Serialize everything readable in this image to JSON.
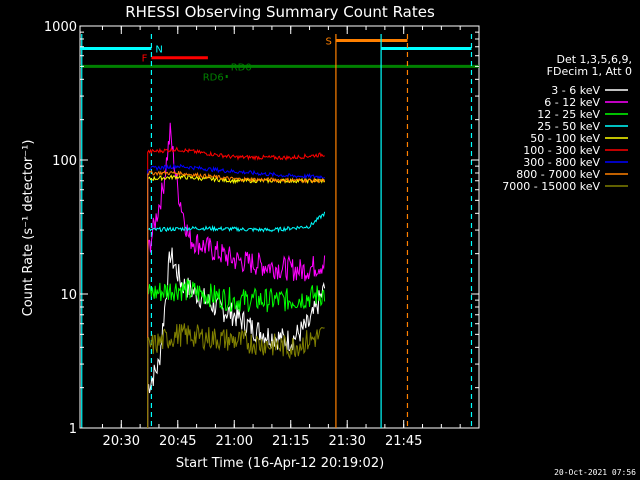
{
  "chart_data": {
    "type": "line",
    "title": "RHESSI Observing Summary Count Rates",
    "xlabel": "Start Time (16-Apr-12 20:19:02)",
    "ylabel": "Count Rate (s⁻¹ detector⁻¹)",
    "y_scale": "log",
    "ylim": [
      1,
      1000
    ],
    "y_ticks": [
      {
        "value": 1,
        "label": "1"
      },
      {
        "value": 10,
        "label": "10"
      },
      {
        "value": 100,
        "label": "100"
      },
      {
        "value": 1000,
        "label": "1000"
      }
    ],
    "x_ticks": [
      "20:30",
      "20:45",
      "21:00",
      "21:15",
      "21:30",
      "21:45"
    ],
    "xlim": [
      "20:19:02",
      "22:05:00"
    ],
    "footer_date": "20-Oct-2021 07:56",
    "legend_header": [
      "Det 1,3,5,6,9,",
      "FDecim 1, Att 0"
    ],
    "legend_position": "right",
    "series": [
      {
        "name": "3 - 6 keV",
        "color": "#ffffff",
        "data_start": "20:37",
        "data_end": "21:24",
        "points": [
          [
            "20:37",
            2
          ],
          [
            "20:40",
            3
          ],
          [
            "20:43",
            20
          ],
          [
            "20:46",
            12
          ],
          [
            "20:50",
            10
          ],
          [
            "20:55",
            8
          ],
          [
            "21:00",
            7
          ],
          [
            "21:05",
            5.5
          ],
          [
            "21:10",
            4.8
          ],
          [
            "21:15",
            4.5
          ],
          [
            "21:20",
            6
          ],
          [
            "21:24",
            11
          ]
        ]
      },
      {
        "name": "6 - 12 keV",
        "color": "#ff00ff",
        "data_start": "20:37",
        "data_end": "21:24",
        "points": [
          [
            "20:37",
            20
          ],
          [
            "20:41",
            60
          ],
          [
            "20:43",
            160
          ],
          [
            "20:45",
            60
          ],
          [
            "20:48",
            26
          ],
          [
            "20:53",
            22
          ],
          [
            "21:00",
            18
          ],
          [
            "21:10",
            16
          ],
          [
            "21:18",
            15
          ],
          [
            "21:24",
            17
          ]
        ]
      },
      {
        "name": "12 - 25 keV",
        "color": "#00ff00",
        "data_start": "20:37",
        "data_end": "21:24",
        "points": [
          [
            "20:37",
            10
          ],
          [
            "20:45",
            11
          ],
          [
            "21:00",
            9
          ],
          [
            "21:15",
            9
          ],
          [
            "21:24",
            10
          ]
        ]
      },
      {
        "name": "25 - 50 keV",
        "color": "#00ffff",
        "data_start": "20:37",
        "data_end": "21:24",
        "points": [
          [
            "20:37",
            30
          ],
          [
            "20:50",
            31
          ],
          [
            "21:10",
            30
          ],
          [
            "21:20",
            32
          ],
          [
            "21:24",
            40
          ]
        ]
      },
      {
        "name": "50 - 100 keV",
        "color": "#ffff00",
        "data_start": "20:37",
        "data_end": "21:24",
        "points": [
          [
            "20:37",
            72
          ],
          [
            "20:45",
            75
          ],
          [
            "21:00",
            70
          ],
          [
            "21:24",
            70
          ]
        ]
      },
      {
        "name": "100 - 300 keV",
        "color": "#ff0000",
        "data_start": "20:37",
        "data_end": "21:24",
        "points": [
          [
            "20:37",
            115
          ],
          [
            "20:45",
            120
          ],
          [
            "21:00",
            105
          ],
          [
            "21:15",
            104
          ],
          [
            "21:24",
            110
          ]
        ]
      },
      {
        "name": "300 - 800 keV",
        "color": "#0000ff",
        "data_start": "20:37",
        "data_end": "21:24",
        "points": [
          [
            "20:37",
            86
          ],
          [
            "20:45",
            90
          ],
          [
            "21:00",
            82
          ],
          [
            "21:15",
            76
          ],
          [
            "21:24",
            75
          ]
        ]
      },
      {
        "name": "800 - 7000 keV",
        "color": "#ff8000",
        "data_start": "20:37",
        "data_end": "21:24",
        "points": [
          [
            "20:37",
            80
          ],
          [
            "20:45",
            80
          ],
          [
            "21:00",
            72
          ],
          [
            "21:24",
            70
          ]
        ]
      },
      {
        "name": "7000 - 15000 keV",
        "color": "#808000",
        "data_start": "20:37",
        "data_end": "21:24",
        "points": [
          [
            "20:37",
            4
          ],
          [
            "20:45",
            5
          ],
          [
            "21:00",
            4.5
          ],
          [
            "21:15",
            4
          ],
          [
            "21:24",
            5
          ]
        ]
      }
    ],
    "flag_bars": [
      {
        "label": "N",
        "color": "#00ffff",
        "y": 680,
        "segments": [
          [
            "20:19:02",
            "20:38"
          ],
          [
            "21:39",
            "22:03"
          ]
        ]
      },
      {
        "label": "F",
        "color": "#ff0000",
        "y": 580,
        "segments": [
          [
            "20:38",
            "20:53"
          ]
        ]
      },
      {
        "label": "S",
        "color": "#ff8000",
        "y": 780,
        "segments": [
          [
            "21:27",
            "21:46"
          ]
        ]
      },
      {
        "label": "RD0",
        "color": "#008000",
        "y": 500,
        "segments": [
          [
            "20:19:02",
            "22:05"
          ]
        ]
      },
      {
        "label": "RD6",
        "color": "#008000",
        "y": 420,
        "segments": [
          [
            "20:58",
            "20:58"
          ]
        ]
      }
    ],
    "vertical_lines": [
      {
        "time": "20:19:30",
        "color": "#00ffff",
        "style": "solid"
      },
      {
        "time": "20:38",
        "color": "#00ffff",
        "style": "dashed"
      },
      {
        "time": "21:27",
        "color": "#ff8000",
        "style": "solid"
      },
      {
        "time": "21:39",
        "color": "#00ffff",
        "style": "solid"
      },
      {
        "time": "21:46",
        "color": "#ff8000",
        "style": "dashed"
      },
      {
        "time": "22:03",
        "color": "#00ffff",
        "style": "dashed"
      }
    ]
  }
}
